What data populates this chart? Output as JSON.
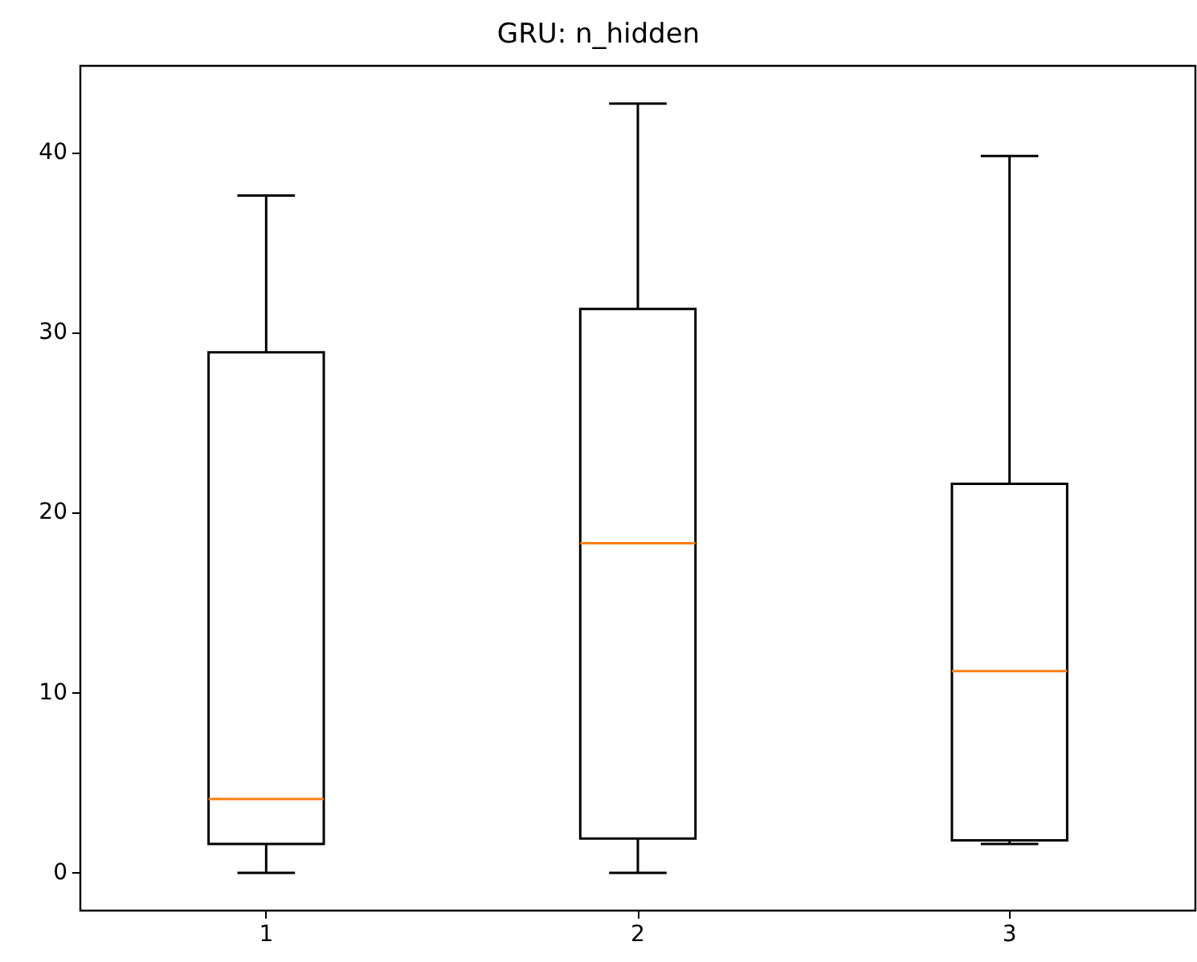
{
  "chart_data": {
    "type": "box",
    "title": "GRU: n_hidden",
    "categories": [
      "1",
      "2",
      "3"
    ],
    "color": "#000000",
    "boxes": [
      {
        "low": 0,
        "q1": 1.6,
        "median": 4.1,
        "q3": 28.9,
        "high": 37.6
      },
      {
        "low": 0,
        "q1": 1.9,
        "median": 18.3,
        "q3": 31.3,
        "high": 42.7
      },
      {
        "low": 1.6,
        "q1": 1.8,
        "median": 11.2,
        "q3": 21.6,
        "high": 39.8
      }
    ],
    "ylim": [
      -2.1,
      44.8
    ],
    "yticks": [
      0,
      10,
      20,
      30,
      40
    ],
    "grid": false
  }
}
